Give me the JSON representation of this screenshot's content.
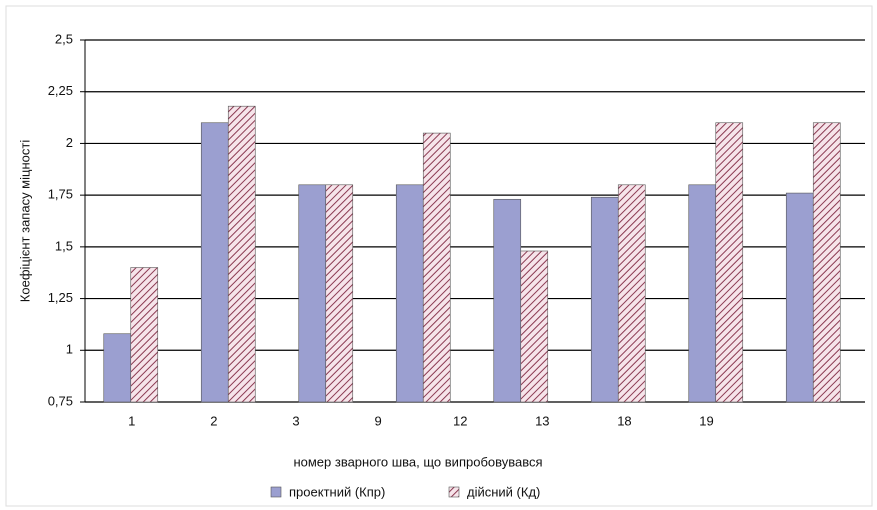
{
  "chart_data": {
    "type": "bar",
    "y_label": "Коефіцієнт запасу міцності",
    "x_label": "номер зварного шва, що випробовувався",
    "categories": [
      "1",
      "2",
      "3",
      "9",
      "12",
      "13",
      "18",
      "19"
    ],
    "series": [
      {
        "name": "проектний (Кпр)",
        "color": "#9b9fd0",
        "values": [
          1.08,
          2.1,
          1.8,
          1.8,
          1.73,
          1.74,
          1.8,
          1.76
        ]
      },
      {
        "name": "дійсний (Кд)",
        "color": "#8b3a52",
        "values": [
          1.4,
          2.18,
          1.8,
          2.05,
          1.48,
          1.8,
          2.1,
          2.1
        ]
      }
    ],
    "ylim": [
      0.75,
      2.5
    ],
    "yticks": [
      {
        "value": 0.75,
        "label": "0,75"
      },
      1,
      {
        "value": 1.25,
        "label": "1,25"
      },
      {
        "value": 1.5,
        "label": "1,5"
      },
      {
        "value": 1.75,
        "label": "1,75"
      },
      2,
      {
        "value": 2.25,
        "label": "2,25"
      },
      {
        "value": 2.5,
        "label": "2,5"
      }
    ],
    "grid": true
  }
}
